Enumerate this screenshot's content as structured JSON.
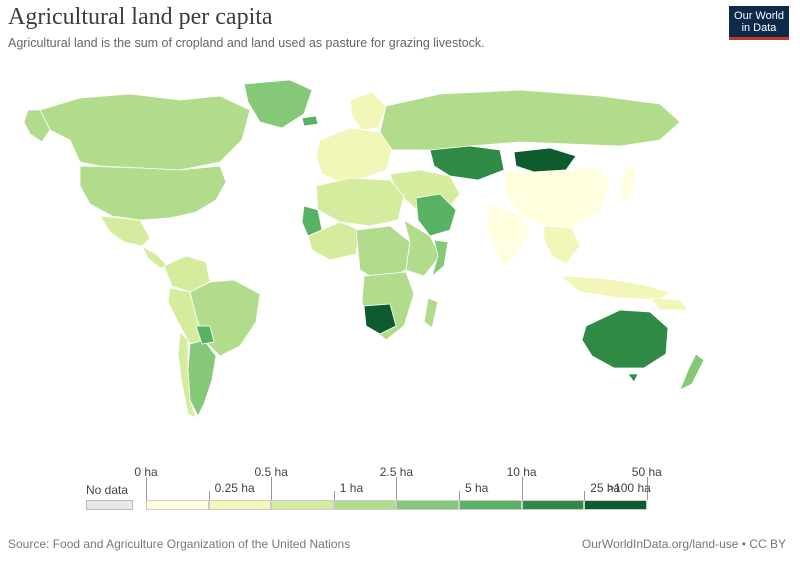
{
  "header": {
    "title": "Agricultural land per capita",
    "subtitle": "Agricultural land is the sum of cropland and land used as pasture for grazing livestock."
  },
  "logo": {
    "line1": "Our World",
    "line2": "in Data"
  },
  "legend": {
    "no_data_label": "No data",
    "no_data_color": "#e8e8e8",
    "bins": [
      {
        "color": "#ffffe0"
      },
      {
        "color": "#f3f6b9"
      },
      {
        "color": "#d5ec9f"
      },
      {
        "color": "#b0dc8c"
      },
      {
        "color": "#84c878"
      },
      {
        "color": "#58b264"
      },
      {
        "color": "#2e8a45"
      },
      {
        "color": "#0e5c2e"
      }
    ],
    "upper_ticks": [
      "0 ha",
      "0.5 ha",
      "2.5 ha",
      "10 ha",
      "50 ha"
    ],
    "lower_ticks": [
      "0.25 ha",
      "1 ha",
      "5 ha",
      "25 ha",
      ">100 ha"
    ]
  },
  "footer": {
    "source": "Source: Food and Agriculture Organization of the United Nations",
    "url": "OurWorldInData.org/land-use • CC BY"
  }
}
